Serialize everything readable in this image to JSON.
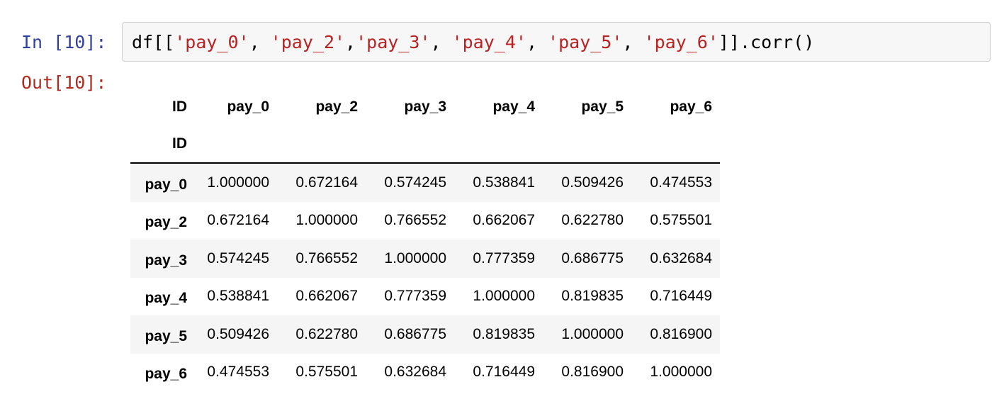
{
  "input_prompt": "In [10]:",
  "output_prompt": "Out[10]:",
  "code": {
    "tokens": [
      {
        "text": "df[[",
        "kind": "op"
      },
      {
        "text": "'pay_0'",
        "kind": "str"
      },
      {
        "text": ", ",
        "kind": "op"
      },
      {
        "text": "'pay_2'",
        "kind": "str"
      },
      {
        "text": ",",
        "kind": "op"
      },
      {
        "text": "'pay_3'",
        "kind": "str"
      },
      {
        "text": ", ",
        "kind": "op"
      },
      {
        "text": "'pay_4'",
        "kind": "str"
      },
      {
        "text": ", ",
        "kind": "op"
      },
      {
        "text": "'pay_5'",
        "kind": "str"
      },
      {
        "text": ", ",
        "kind": "op"
      },
      {
        "text": "'pay_6'",
        "kind": "str"
      },
      {
        "text": "]].corr()",
        "kind": "op"
      }
    ]
  },
  "table": {
    "columns_name": "ID",
    "index_name": "ID",
    "columns": [
      "pay_0",
      "pay_2",
      "pay_3",
      "pay_4",
      "pay_5",
      "pay_6"
    ],
    "rows": [
      {
        "index": "pay_0",
        "values": [
          "1.000000",
          "0.672164",
          "0.574245",
          "0.538841",
          "0.509426",
          "0.474553"
        ]
      },
      {
        "index": "pay_2",
        "values": [
          "0.672164",
          "1.000000",
          "0.766552",
          "0.662067",
          "0.622780",
          "0.575501"
        ]
      },
      {
        "index": "pay_3",
        "values": [
          "0.574245",
          "0.766552",
          "1.000000",
          "0.777359",
          "0.686775",
          "0.632684"
        ]
      },
      {
        "index": "pay_4",
        "values": [
          "0.538841",
          "0.662067",
          "0.777359",
          "1.000000",
          "0.819835",
          "0.716449"
        ]
      },
      {
        "index": "pay_5",
        "values": [
          "0.509426",
          "0.622780",
          "0.686775",
          "0.819835",
          "1.000000",
          "0.816900"
        ]
      },
      {
        "index": "pay_6",
        "values": [
          "0.474553",
          "0.575501",
          "0.632684",
          "0.716449",
          "0.816900",
          "1.000000"
        ]
      }
    ]
  }
}
